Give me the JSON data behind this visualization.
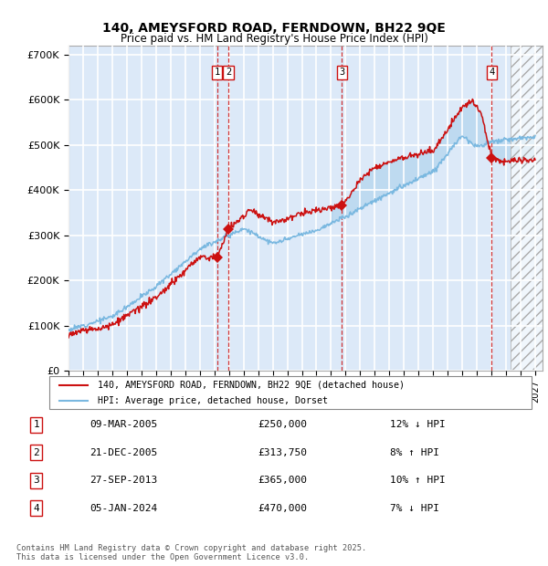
{
  "title1": "140, AMEYSFORD ROAD, FERNDOWN, BH22 9QE",
  "title2": "Price paid vs. HM Land Registry's House Price Index (HPI)",
  "xlim_start": 1995.0,
  "xlim_end": 2027.5,
  "ylim_min": 0,
  "ylim_max": 720000,
  "yticks": [
    0,
    100000,
    200000,
    300000,
    400000,
    500000,
    600000,
    700000
  ],
  "ytick_labels": [
    "£0",
    "£100K",
    "£200K",
    "£300K",
    "£400K",
    "£500K",
    "£600K",
    "£700K"
  ],
  "bg_color": "#dce9f8",
  "grid_color": "#ffffff",
  "hpi_color": "#7ab8e0",
  "price_color": "#cc1111",
  "sale_marker_color": "#cc1111",
  "dashed_line_color": "#cc1111",
  "future_start": 2025.3,
  "transactions": [
    {
      "num": 1,
      "date": "09-MAR-2005",
      "year": 2005.19,
      "price": 250000,
      "label": "1"
    },
    {
      "num": 2,
      "date": "21-DEC-2005",
      "year": 2005.97,
      "price": 313750,
      "label": "2"
    },
    {
      "num": 3,
      "date": "27-SEP-2013",
      "year": 2013.74,
      "price": 365000,
      "label": "3"
    },
    {
      "num": 4,
      "date": "05-JAN-2024",
      "year": 2024.02,
      "price": 470000,
      "label": "4"
    }
  ],
  "legend_line1": "140, AMEYSFORD ROAD, FERNDOWN, BH22 9QE (detached house)",
  "legend_line2": "HPI: Average price, detached house, Dorset",
  "footnote": "Contains HM Land Registry data © Crown copyright and database right 2025.\nThis data is licensed under the Open Government Licence v3.0.",
  "table_rows": [
    [
      "1",
      "09-MAR-2005",
      "£250,000",
      "12% ↓ HPI"
    ],
    [
      "2",
      "21-DEC-2005",
      "£313,750",
      "8% ↑ HPI"
    ],
    [
      "3",
      "27-SEP-2013",
      "£365,000",
      "10% ↑ HPI"
    ],
    [
      "4",
      "05-JAN-2024",
      "£470,000",
      "7% ↓ HPI"
    ]
  ]
}
